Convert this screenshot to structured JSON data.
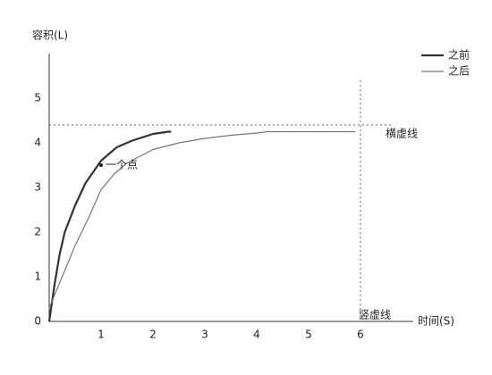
{
  "chart_data": {
    "type": "line",
    "ylabel": "容积(L)",
    "xlabel": "时间(S)",
    "xlim": [
      0,
      7
    ],
    "ylim": [
      0,
      6
    ],
    "xticks": [
      1,
      2,
      3,
      4,
      5,
      6
    ],
    "yticks": [
      0,
      1,
      2,
      3,
      4,
      5
    ],
    "series": [
      {
        "name": "之前",
        "color": "#333333",
        "width": 2.2,
        "x": [
          0,
          0.1,
          0.2,
          0.3,
          0.5,
          0.7,
          1,
          1.3,
          1.6,
          2,
          2.3,
          2.35
        ],
        "values": [
          0,
          0.8,
          1.5,
          2.0,
          2.6,
          3.1,
          3.6,
          3.9,
          4.05,
          4.2,
          4.25,
          4.25
        ]
      },
      {
        "name": "之后",
        "color": "#777777",
        "width": 1.2,
        "x": [
          0,
          0.25,
          0.5,
          0.75,
          1,
          1.25,
          1.5,
          2,
          2.5,
          3,
          3.5,
          4,
          4.2,
          5,
          5.9
        ],
        "values": [
          0.3,
          1.0,
          1.7,
          2.3,
          2.95,
          3.3,
          3.55,
          3.85,
          4.0,
          4.1,
          4.17,
          4.22,
          4.25,
          4.25,
          4.25
        ]
      }
    ],
    "hline": {
      "value": 4.4,
      "label": "横虚线"
    },
    "vline": {
      "value": 6,
      "label": "竖虚线"
    },
    "point": {
      "x": 1,
      "y": 3.5,
      "label": "一个点"
    }
  }
}
